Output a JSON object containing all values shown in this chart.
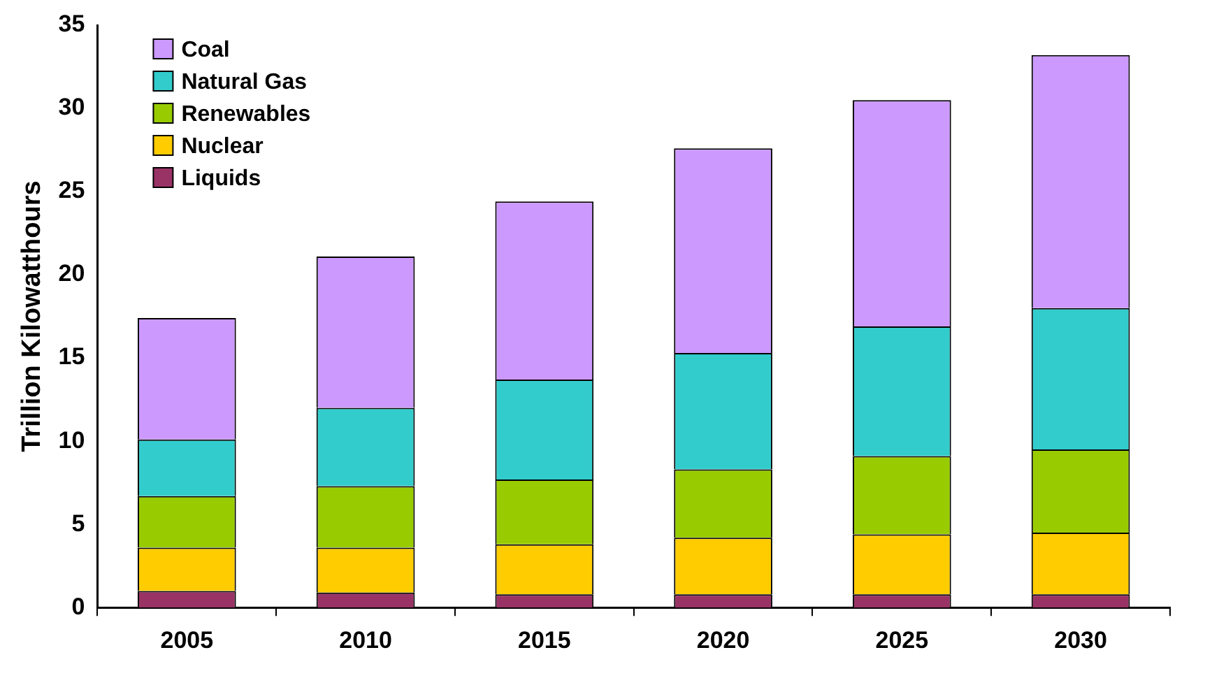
{
  "chart_data": {
    "type": "bar",
    "stacked": true,
    "ylabel": "Trillion Kilowatthours",
    "categories": [
      "2005",
      "2010",
      "2015",
      "2020",
      "2025",
      "2030"
    ],
    "series": [
      {
        "name": "Liquids",
        "color": "#993366",
        "values": [
          1.0,
          0.9,
          0.8,
          0.8,
          0.8,
          0.8
        ]
      },
      {
        "name": "Nuclear",
        "color": "#ffcc00",
        "values": [
          2.6,
          2.7,
          3.0,
          3.4,
          3.6,
          3.7
        ]
      },
      {
        "name": "Renewables",
        "color": "#99cc00",
        "values": [
          3.1,
          3.7,
          3.9,
          4.1,
          4.7,
          5.0
        ]
      },
      {
        "name": "Natural Gas",
        "color": "#33cccc",
        "values": [
          3.4,
          4.7,
          6.0,
          7.0,
          7.8,
          8.5
        ]
      },
      {
        "name": "Coal",
        "color": "#cc99ff",
        "values": [
          7.3,
          9.1,
          10.7,
          12.3,
          13.6,
          15.2
        ]
      }
    ],
    "ylim": [
      0,
      35
    ],
    "yticks": [
      0,
      5,
      10,
      15,
      20,
      25,
      30,
      35
    ],
    "grid": false,
    "legend": "top left"
  }
}
